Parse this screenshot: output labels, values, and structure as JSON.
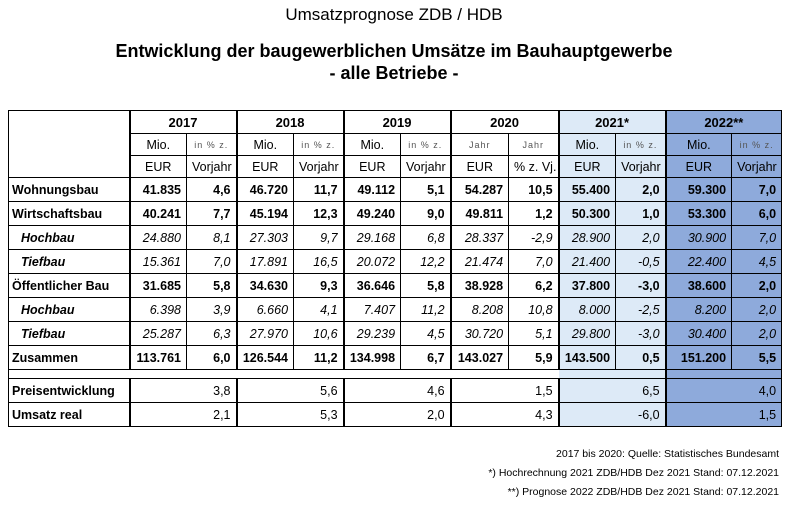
{
  "header": {
    "title": "Umsatzprognose ZDB / HDB",
    "subtitle_line1": "Entwicklung der baugewerblichen Umsätze im Bauhauptgewerbe",
    "subtitle_line2": "- alle Betriebe -"
  },
  "colors": {
    "col_2021": "#ddeaf7",
    "col_2022": "#8eaadb"
  },
  "table": {
    "years": [
      "2017",
      "2018",
      "2019",
      "2020",
      "2021*",
      "2022**"
    ],
    "subheaders": [
      {
        "a1": "Mio.",
        "a2": "EUR",
        "b1": "in % z.",
        "b2": "Vorjahr"
      },
      {
        "a1": "Mio.",
        "a2": "EUR",
        "b1": "in % z.",
        "b2": "Vorjahr"
      },
      {
        "a1": "Mio.",
        "a2": "EUR",
        "b1": "in % z.",
        "b2": "Vorjahr"
      },
      {
        "a1": "Jahr",
        "a2": "EUR",
        "b1": "Jahr",
        "b2": "% z. Vj."
      },
      {
        "a1": "Mio.",
        "a2": "EUR",
        "b1": "in % z.",
        "b2": "Vorjahr"
      },
      {
        "a1": "Mio.",
        "a2": "EUR",
        "b1": "in % z.",
        "b2": "Vorjahr"
      }
    ],
    "rows": [
      {
        "label": "Wohnungsbau",
        "style": "bold",
        "values": [
          "41.835",
          "4,6",
          "46.720",
          "11,7",
          "49.112",
          "5,1",
          "54.287",
          "10,5",
          "55.400",
          "2,0",
          "59.300",
          "7,0"
        ]
      },
      {
        "label": "Wirtschaftsbau",
        "style": "bold",
        "values": [
          "40.241",
          "7,7",
          "45.194",
          "12,3",
          "49.240",
          "9,0",
          "49.811",
          "1,2",
          "50.300",
          "1,0",
          "53.300",
          "6,0"
        ]
      },
      {
        "label": "Hochbau",
        "style": "italic",
        "values": [
          "24.880",
          "8,1",
          "27.303",
          "9,7",
          "29.168",
          "6,8",
          "28.337",
          "-2,9",
          "28.900",
          "2,0",
          "30.900",
          "7,0"
        ]
      },
      {
        "label": "Tiefbau",
        "style": "italic",
        "values": [
          "15.361",
          "7,0",
          "17.891",
          "16,5",
          "20.072",
          "12,2",
          "21.474",
          "7,0",
          "21.400",
          "-0,5",
          "22.400",
          "4,5"
        ]
      },
      {
        "label": "Öffentlicher Bau",
        "style": "bold",
        "values": [
          "31.685",
          "5,8",
          "34.630",
          "9,3",
          "36.646",
          "5,8",
          "38.928",
          "6,2",
          "37.800",
          "-3,0",
          "38.600",
          "2,0"
        ]
      },
      {
        "label": "Hochbau",
        "style": "italic",
        "values": [
          "6.398",
          "3,9",
          "6.660",
          "4,1",
          "7.407",
          "11,2",
          "8.208",
          "10,8",
          "8.000",
          "-2,5",
          "8.200",
          "2,0"
        ]
      },
      {
        "label": "Tiefbau",
        "style": "italic",
        "values": [
          "25.287",
          "6,3",
          "27.970",
          "10,6",
          "29.239",
          "4,5",
          "30.720",
          "5,1",
          "29.800",
          "-3,0",
          "30.400",
          "2,0"
        ]
      },
      {
        "label": "Zusammen",
        "style": "bold",
        "values": [
          "113.761",
          "6,0",
          "126.544",
          "11,2",
          "134.998",
          "6,7",
          "143.027",
          "5,9",
          "143.500",
          "0,5",
          "151.200",
          "5,5"
        ]
      }
    ],
    "summary_rows": [
      {
        "label": "Preisentwicklung",
        "values": [
          "3,8",
          "5,6",
          "4,6",
          "1,5",
          "6,5",
          "4,0"
        ]
      },
      {
        "label": "Umsatz real",
        "values": [
          "2,1",
          "5,3",
          "2,0",
          "4,3",
          "-6,0",
          "1,5"
        ]
      }
    ]
  },
  "footer": {
    "line1": "2017 bis 2020: Quelle: Statistisches Bundesamt",
    "line2": "*) Hochrechnung 2021 ZDB/HDB Dez 2021 Stand: 07.12.2021",
    "line3": "**) Prognose 2022 ZDB/HDB Dez 2021 Stand: 07.12.2021"
  }
}
